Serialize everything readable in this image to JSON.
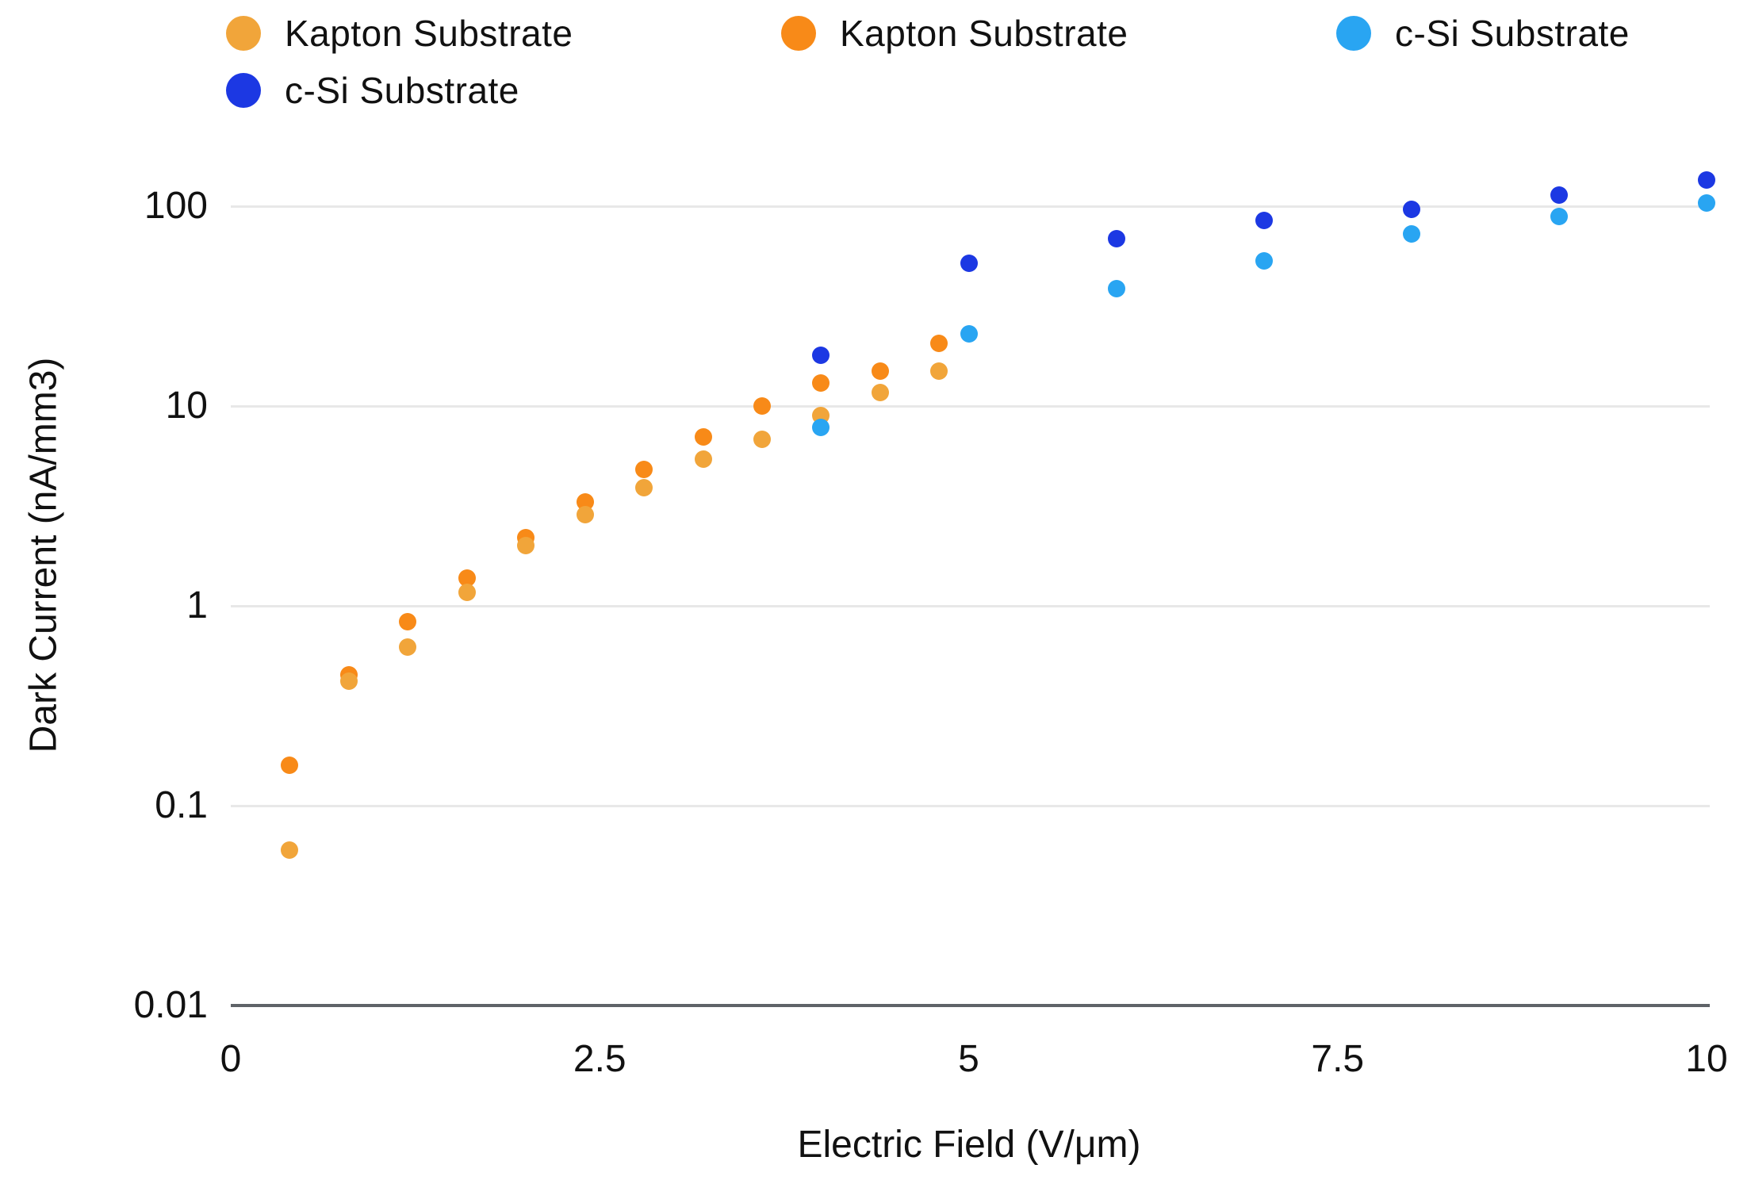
{
  "legend": {
    "items": [
      {
        "label": "Kapton Substrate",
        "color": "#F1A53A"
      },
      {
        "label": "Kapton Substrate",
        "color": "#F88A18"
      },
      {
        "label": "c-Si Substrate",
        "color": "#29A5F2"
      },
      {
        "label": "c-Si Substrate",
        "color": "#1C38E3"
      }
    ]
  },
  "axes": {
    "x": {
      "title": "Electric Field (V/μm)",
      "tick_labels": [
        "0",
        "2.5",
        "5",
        "7.5",
        "10"
      ],
      "tick_values": [
        0,
        2.5,
        5,
        7.5,
        10
      ]
    },
    "y": {
      "title": "Dark Current (nA/mm3)",
      "tick_labels": [
        "100",
        "10",
        "1",
        "0.1",
        "0.01"
      ],
      "tick_values": [
        100,
        10,
        1,
        0.1,
        0.01
      ]
    }
  },
  "chart_data": {
    "type": "scatter",
    "title": "",
    "xlabel": "Electric Field (V/μm)",
    "ylabel": "Dark Current (nA/mm3)",
    "x_scale": "linear",
    "y_scale": "log",
    "xlim": [
      0,
      10
    ],
    "ylim": [
      0.01,
      100
    ],
    "grid": "horizontal",
    "legend_position": "top",
    "series": [
      {
        "name": "Kapton Substrate",
        "color": "#F1A53A",
        "points": [
          [
            0.4,
            0.06
          ],
          [
            0.8,
            0.42
          ],
          [
            1.2,
            0.62
          ],
          [
            1.6,
            1.17
          ],
          [
            2.0,
            2.0
          ],
          [
            2.4,
            2.85
          ],
          [
            2.8,
            3.9
          ],
          [
            3.2,
            5.4
          ],
          [
            3.6,
            6.8
          ],
          [
            4.0,
            9.0
          ],
          [
            4.4,
            11.7
          ],
          [
            4.8,
            15.0
          ]
        ]
      },
      {
        "name": "Kapton Substrate",
        "color": "#F88A18",
        "points": [
          [
            0.4,
            0.16
          ],
          [
            0.8,
            0.45
          ],
          [
            1.2,
            0.83
          ],
          [
            1.6,
            1.38
          ],
          [
            2.0,
            2.2
          ],
          [
            2.4,
            3.3
          ],
          [
            2.8,
            4.8
          ],
          [
            3.2,
            7.0
          ],
          [
            3.6,
            10.0
          ],
          [
            4.0,
            13.0
          ],
          [
            4.4,
            15.0
          ],
          [
            4.8,
            20.5
          ]
        ]
      },
      {
        "name": "c-Si Substrate",
        "color": "#29A5F2",
        "points": [
          [
            4.0,
            7.8
          ],
          [
            5.0,
            23
          ],
          [
            6.0,
            38.5
          ],
          [
            7.0,
            53
          ],
          [
            8.0,
            72.5
          ],
          [
            9.0,
            89
          ],
          [
            10.0,
            104
          ]
        ]
      },
      {
        "name": "c-Si Substrate",
        "color": "#1C38E3",
        "points": [
          [
            4.0,
            18
          ],
          [
            5.0,
            52
          ],
          [
            6.0,
            69
          ],
          [
            7.0,
            85
          ],
          [
            8.0,
            96
          ],
          [
            9.0,
            114
          ],
          [
            10.0,
            135
          ]
        ]
      }
    ]
  }
}
